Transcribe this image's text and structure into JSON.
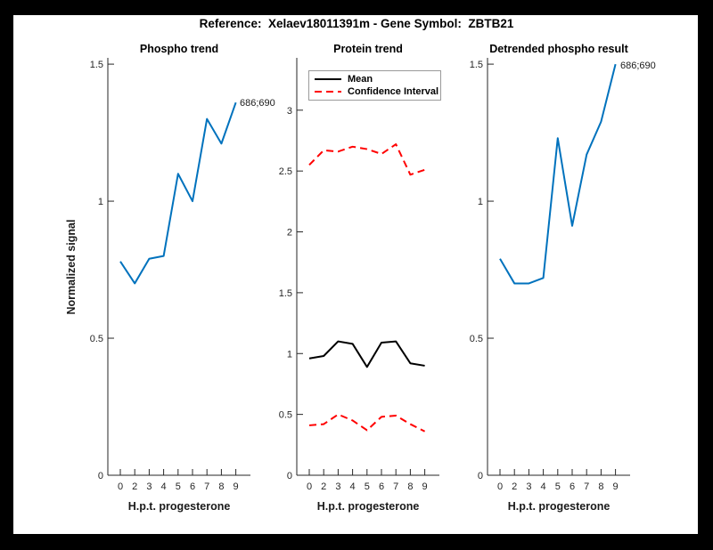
{
  "suptitle": "Reference:  Xelaev18011391m - Gene Symbol:  ZBTB21",
  "colors": {
    "figure_background": "#ffffff",
    "page_background": "#000000",
    "axis": "#262626",
    "blue_line": "#0072BD",
    "mean_line": "#000000",
    "ci_line": "#ff0000"
  },
  "chart_data": [
    {
      "type": "line",
      "title": "Phospho trend",
      "xlabel": "H.p.t. progesterone",
      "ylabel": "Normalized signal",
      "categories": [
        "0",
        "2",
        "3",
        "4",
        "5",
        "6",
        "7",
        "8",
        "9"
      ],
      "yticks": [
        0,
        0.5,
        1,
        1.5
      ],
      "ylim": [
        0,
        1.523
      ],
      "grid": false,
      "annotation": "686;690",
      "series": [
        {
          "name": "Phospho signal",
          "color": "#0072BD",
          "style": "solid",
          "values": [
            0.78,
            0.7,
            0.79,
            0.8,
            1.1,
            1.0,
            1.3,
            1.21,
            1.36
          ]
        }
      ]
    },
    {
      "type": "line",
      "title": "Protein trend",
      "xlabel": "H.p.t. progesterone",
      "categories": [
        "0",
        "2",
        "3",
        "4",
        "5",
        "6",
        "7",
        "8",
        "9"
      ],
      "yticks": [
        0,
        0.5,
        1,
        1.5,
        2,
        2.5,
        3
      ],
      "ylim": [
        0,
        3.43
      ],
      "grid": false,
      "legend": {
        "position": "top-left",
        "entries": [
          {
            "label": "Mean",
            "color": "#000000",
            "style": "solid"
          },
          {
            "label": "Confidence Interval",
            "color": "#ff0000",
            "style": "dashed"
          }
        ]
      },
      "series": [
        {
          "name": "CI upper",
          "color": "#ff0000",
          "style": "dashed",
          "values": [
            2.55,
            2.67,
            2.66,
            2.7,
            2.68,
            2.64,
            2.72,
            2.47,
            2.51
          ]
        },
        {
          "name": "Mean",
          "color": "#000000",
          "style": "solid",
          "values": [
            0.96,
            0.98,
            1.1,
            1.08,
            0.89,
            1.09,
            1.1,
            0.92,
            0.9
          ]
        },
        {
          "name": "CI lower",
          "color": "#ff0000",
          "style": "dashed",
          "values": [
            0.41,
            0.42,
            0.5,
            0.45,
            0.37,
            0.48,
            0.49,
            0.42,
            0.36
          ]
        }
      ]
    },
    {
      "type": "line",
      "title": "Detrended phospho result",
      "xlabel": "H.p.t. progesterone",
      "categories": [
        "0",
        "2",
        "3",
        "4",
        "5",
        "6",
        "7",
        "8",
        "9"
      ],
      "yticks": [
        0,
        0.5,
        1,
        1.5
      ],
      "ylim": [
        0,
        1.523
      ],
      "grid": false,
      "annotation": "686;690",
      "series": [
        {
          "name": "Detrended phospho signal",
          "color": "#0072BD",
          "style": "solid",
          "values": [
            0.79,
            0.7,
            0.7,
            0.72,
            1.23,
            0.91,
            1.17,
            1.29,
            1.5
          ]
        }
      ]
    }
  ]
}
